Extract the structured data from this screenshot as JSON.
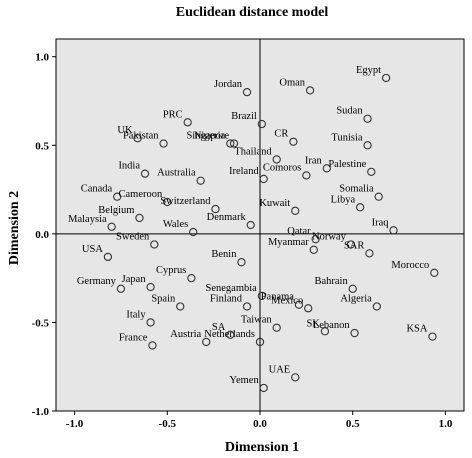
{
  "chart_data": {
    "type": "scatter",
    "title": "Euclidean distance model",
    "xlabel": "Dimension 1",
    "ylabel": "Dimension 2",
    "xlim": [
      -1.1,
      1.1
    ],
    "ylim": [
      -1.0,
      1.1
    ],
    "xticks": [
      "-1.0",
      "-0.5",
      "0.0",
      "0.5",
      "1.0"
    ],
    "yticks": [
      "1.0",
      "0.5",
      "0.0",
      "-0.5",
      "-1.0"
    ],
    "reference_lines": {
      "x": 0,
      "y": 0
    },
    "colors": {
      "plot_background": "#e6e6e6",
      "marker_stroke": "#333333",
      "axis": "#000000"
    },
    "points": [
      {
        "label": "Egypt",
        "x": 0.68,
        "y": 0.88
      },
      {
        "label": "Oman",
        "x": 0.27,
        "y": 0.81
      },
      {
        "label": "Jordan",
        "x": -0.07,
        "y": 0.8
      },
      {
        "label": "Sudan",
        "x": 0.58,
        "y": 0.65
      },
      {
        "label": "PRC",
        "x": -0.39,
        "y": 0.63
      },
      {
        "label": "Brazil",
        "x": 0.01,
        "y": 0.62
      },
      {
        "label": "UK",
        "x": -0.66,
        "y": 0.54
      },
      {
        "label": "CR",
        "x": 0.18,
        "y": 0.52
      },
      {
        "label": "Tunisia",
        "x": 0.58,
        "y": 0.5
      },
      {
        "label": "Pakistan",
        "x": -0.52,
        "y": 0.51
      },
      {
        "label": "Singapore",
        "x": -0.14,
        "y": 0.51
      },
      {
        "label": "Nigeria",
        "x": -0.16,
        "y": 0.51
      },
      {
        "label": "Thailand",
        "x": 0.09,
        "y": 0.42
      },
      {
        "label": "Iran",
        "x": 0.36,
        "y": 0.37
      },
      {
        "label": "Palestine",
        "x": 0.6,
        "y": 0.35
      },
      {
        "label": "India",
        "x": -0.62,
        "y": 0.34
      },
      {
        "label": "Australia",
        "x": -0.32,
        "y": 0.3
      },
      {
        "label": "Comoros",
        "x": 0.25,
        "y": 0.33
      },
      {
        "label": "Canada",
        "x": -0.77,
        "y": 0.21
      },
      {
        "label": "Somalia",
        "x": 0.64,
        "y": 0.21
      },
      {
        "label": "Cameroon",
        "x": -0.5,
        "y": 0.18
      },
      {
        "label": "Ireland",
        "x": 0.02,
        "y": 0.31
      },
      {
        "label": "Switzerland",
        "x": -0.24,
        "y": 0.14
      },
      {
        "label": "Libya",
        "x": 0.54,
        "y": 0.15
      },
      {
        "label": "Kuwait",
        "x": 0.19,
        "y": 0.13
      },
      {
        "label": "Belgium",
        "x": -0.65,
        "y": 0.09
      },
      {
        "label": "Iraq",
        "x": 0.72,
        "y": 0.02
      },
      {
        "label": "Denmark",
        "x": -0.05,
        "y": 0.05
      },
      {
        "label": "Malaysia",
        "x": -0.8,
        "y": 0.04
      },
      {
        "label": "Norway",
        "x": 0.49,
        "y": -0.06
      },
      {
        "label": "Qatar",
        "x": 0.3,
        "y": -0.03
      },
      {
        "label": "Wales",
        "x": -0.36,
        "y": 0.01
      },
      {
        "label": "Sweden",
        "x": -0.57,
        "y": -0.06
      },
      {
        "label": "USA",
        "x": -0.82,
        "y": -0.13
      },
      {
        "label": "Benin",
        "x": -0.1,
        "y": -0.16
      },
      {
        "label": "Myanmar",
        "x": 0.29,
        "y": -0.09
      },
      {
        "label": "SAR",
        "x": 0.59,
        "y": -0.11
      },
      {
        "label": "Morocco",
        "x": 0.94,
        "y": -0.22
      },
      {
        "label": "Cyprus",
        "x": -0.37,
        "y": -0.25
      },
      {
        "label": "Japan",
        "x": -0.59,
        "y": -0.3
      },
      {
        "label": "Bahrain",
        "x": 0.5,
        "y": -0.31
      },
      {
        "label": "Germany",
        "x": -0.75,
        "y": -0.31
      },
      {
        "label": "Senegambia",
        "x": 0.01,
        "y": -0.35
      },
      {
        "label": "Spain",
        "x": -0.43,
        "y": -0.41
      },
      {
        "label": "Finland",
        "x": -0.07,
        "y": -0.41
      },
      {
        "label": "Panama",
        "x": 0.21,
        "y": -0.4
      },
      {
        "label": "Algeria",
        "x": 0.63,
        "y": -0.41
      },
      {
        "label": "Mexico",
        "x": 0.26,
        "y": -0.42
      },
      {
        "label": "Italy",
        "x": -0.59,
        "y": -0.5
      },
      {
        "label": "Taiwan",
        "x": 0.09,
        "y": -0.53
      },
      {
        "label": "SK",
        "x": 0.35,
        "y": -0.55
      },
      {
        "label": "Lebanon",
        "x": 0.51,
        "y": -0.56
      },
      {
        "label": "KSA",
        "x": 0.93,
        "y": -0.58
      },
      {
        "label": "SA",
        "x": -0.16,
        "y": -0.57
      },
      {
        "label": "France",
        "x": -0.58,
        "y": -0.63
      },
      {
        "label": "Austria",
        "x": -0.29,
        "y": -0.61
      },
      {
        "label": "Netherlands",
        "x": 0.0,
        "y": -0.61
      },
      {
        "label": "UAE",
        "x": 0.19,
        "y": -0.81
      },
      {
        "label": "Yemen",
        "x": 0.02,
        "y": -0.87
      }
    ]
  }
}
